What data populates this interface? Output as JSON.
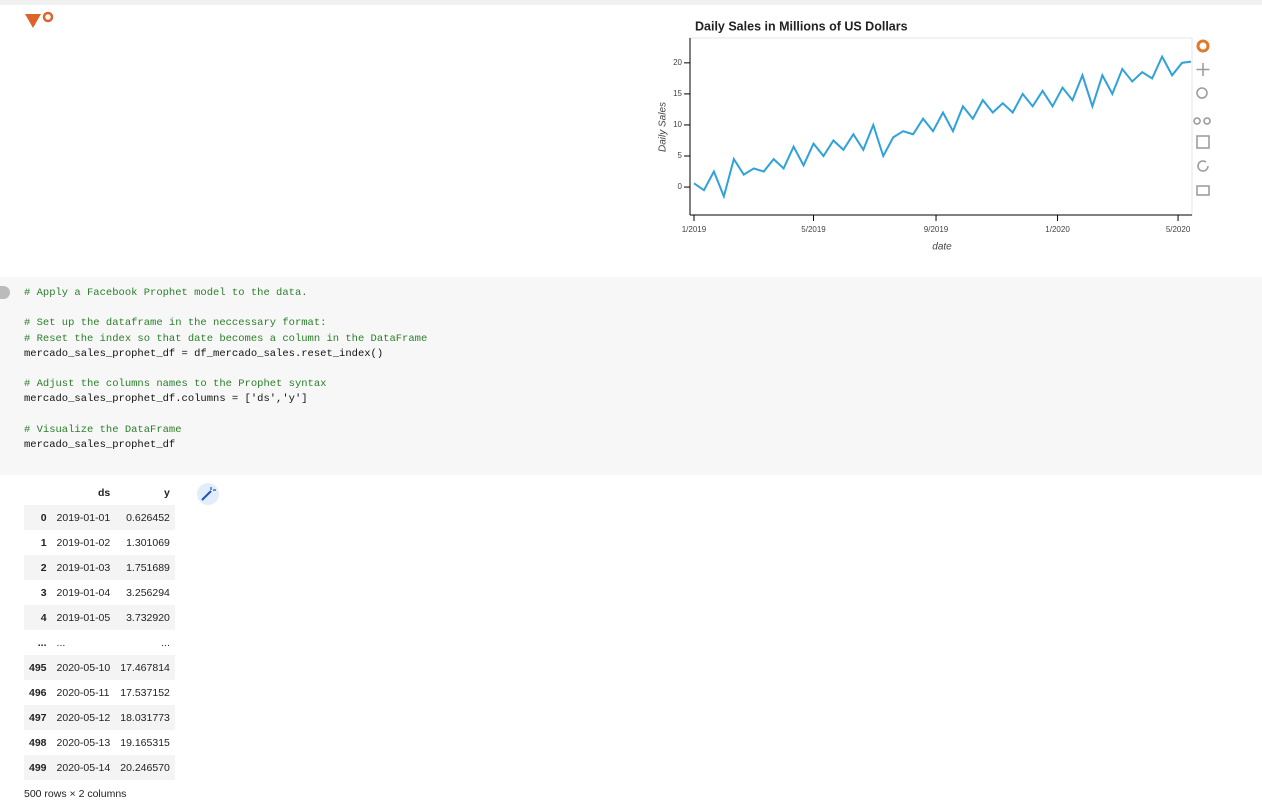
{
  "chart_data": {
    "type": "line",
    "title": "Daily Sales in Millions of US Dollars",
    "x_label": "date",
    "y_label": "Daily Sales",
    "x": [
      0,
      10,
      20,
      30,
      40,
      50,
      60,
      70,
      80,
      90,
      100,
      110,
      120,
      130,
      140,
      150,
      160,
      170,
      180,
      190,
      200,
      210,
      220,
      230,
      240,
      250,
      260,
      270,
      280,
      290,
      300,
      310,
      320,
      330,
      340,
      350,
      360,
      370,
      380,
      390,
      400,
      410,
      420,
      430,
      440,
      450,
      460,
      470,
      480,
      490,
      499
    ],
    "values": [
      0.6,
      -0.5,
      2.5,
      -1.5,
      4.5,
      2,
      3,
      2.5,
      4.5,
      3,
      6.5,
      3.5,
      7,
      5,
      7.5,
      6,
      8.5,
      6,
      10,
      5,
      8,
      9,
      8.5,
      11,
      9,
      12,
      9,
      13,
      11,
      14,
      12,
      13.5,
      12,
      15,
      13,
      15.5,
      13,
      16,
      14,
      18,
      13,
      18,
      15,
      19,
      17,
      18.5,
      17.5,
      21,
      18,
      20,
      20.2
    ],
    "color": "#30a2da",
    "xlim": [
      -4,
      500
    ],
    "ylim": [
      -4.5,
      24
    ],
    "xticks": [
      {
        "value": 0,
        "label": "1/2019"
      },
      {
        "value": 120,
        "label": "5/2019"
      },
      {
        "value": 243,
        "label": "9/2019"
      },
      {
        "value": 365,
        "label": "1/2020"
      },
      {
        "value": 486,
        "label": "5/2020"
      }
    ],
    "yticks": [
      0,
      5,
      10,
      15,
      20
    ]
  },
  "code_cell": {
    "blocks": [
      [
        "# Apply a Facebook Prophet model to the data."
      ],
      [
        "# Set up the dataframe in the neccessary format:",
        "# Reset the index so that date becomes a column in the DataFrame",
        "mercado_sales_prophet_df = df_mercado_sales.reset_index()"
      ],
      [
        "# Adjust the columns names to the Prophet syntax",
        "mercado_sales_prophet_df.columns = ['ds','y']"
      ],
      [
        "# Visualize the DataFrame",
        "mercado_sales_prophet_df"
      ]
    ]
  },
  "table": {
    "columns": [
      "ds",
      "y"
    ],
    "rows": [
      [
        "0",
        "2019-01-01",
        "0.626452"
      ],
      [
        "1",
        "2019-01-02",
        "1.301069"
      ],
      [
        "2",
        "2019-01-03",
        "1.751689"
      ],
      [
        "3",
        "2019-01-04",
        "3.256294"
      ],
      [
        "4",
        "2019-01-05",
        "3.732920"
      ],
      [
        "...",
        "...",
        "..."
      ],
      [
        "495",
        "2020-05-10",
        "17.467814"
      ],
      [
        "496",
        "2020-05-11",
        "17.537152"
      ],
      [
        "497",
        "2020-05-12",
        "18.031773"
      ],
      [
        "498",
        "2020-05-13",
        "19.165315"
      ],
      [
        "499",
        "2020-05-14",
        "20.246570"
      ]
    ],
    "footer": "500 rows × 2 columns"
  }
}
